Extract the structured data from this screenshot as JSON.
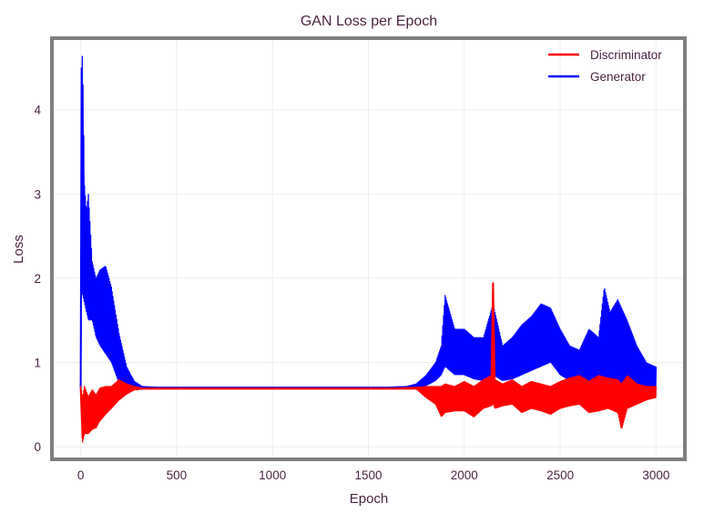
{
  "chart_data": {
    "type": "line",
    "title": "GAN Loss per Epoch",
    "xlabel": "Epoch",
    "ylabel": "Loss",
    "xlim": [
      -150,
      3150
    ],
    "ylim": [
      -0.15,
      4.85
    ],
    "xticks": [
      0,
      500,
      1000,
      1500,
      2000,
      2500,
      3000
    ],
    "yticks": [
      0,
      1,
      2,
      3,
      4
    ],
    "grid": true,
    "legend_position": "top-right",
    "series": [
      {
        "name": "Discriminator",
        "color": "#ff0000",
        "x": [
          0,
          10,
          20,
          40,
          60,
          80,
          100,
          130,
          160,
          200,
          240,
          280,
          320,
          400,
          600,
          800,
          1000,
          1200,
          1400,
          1600,
          1750,
          1800,
          1850,
          1880,
          1900,
          1950,
          2000,
          2050,
          2100,
          2140,
          2150,
          2160,
          2200,
          2250,
          2300,
          2350,
          2400,
          2450,
          2500,
          2550,
          2600,
          2650,
          2700,
          2750,
          2800,
          2820,
          2850,
          2900,
          2950,
          3000
        ],
        "y": [
          0.7,
          0.1,
          0.35,
          0.2,
          0.4,
          0.25,
          0.45,
          0.45,
          0.55,
          0.6,
          0.65,
          0.68,
          0.69,
          0.69,
          0.69,
          0.69,
          0.69,
          0.69,
          0.69,
          0.69,
          0.69,
          0.65,
          0.6,
          0.45,
          0.62,
          0.55,
          0.6,
          0.5,
          0.6,
          0.55,
          1.95,
          0.55,
          0.6,
          0.62,
          0.55,
          0.58,
          0.6,
          0.55,
          0.58,
          0.6,
          0.62,
          0.55,
          0.58,
          0.6,
          0.55,
          0.22,
          0.65,
          0.6,
          0.62,
          0.65
        ],
        "low": [
          0.7,
          0.05,
          0.15,
          0.15,
          0.2,
          0.22,
          0.3,
          0.38,
          0.45,
          0.55,
          0.62,
          0.67,
          0.68,
          0.68,
          0.68,
          0.68,
          0.68,
          0.68,
          0.68,
          0.68,
          0.68,
          0.58,
          0.5,
          0.35,
          0.4,
          0.42,
          0.42,
          0.35,
          0.45,
          0.48,
          0.5,
          0.45,
          0.48,
          0.5,
          0.4,
          0.45,
          0.42,
          0.38,
          0.45,
          0.48,
          0.5,
          0.4,
          0.42,
          0.45,
          0.4,
          0.2,
          0.45,
          0.5,
          0.55,
          0.58
        ],
        "high": [
          0.72,
          0.6,
          0.72,
          0.6,
          0.68,
          0.62,
          0.7,
          0.72,
          0.72,
          0.8,
          0.75,
          0.72,
          0.7,
          0.7,
          0.7,
          0.7,
          0.7,
          0.7,
          0.7,
          0.7,
          0.71,
          0.72,
          0.72,
          0.72,
          0.75,
          0.72,
          0.78,
          0.72,
          0.8,
          0.85,
          1.97,
          0.8,
          0.75,
          0.8,
          0.72,
          0.78,
          0.75,
          0.72,
          0.78,
          0.82,
          0.85,
          0.78,
          0.85,
          0.82,
          0.8,
          0.75,
          0.85,
          0.75,
          0.72,
          0.72
        ]
      },
      {
        "name": "Generator",
        "color": "#0000ff",
        "x": [
          0,
          5,
          10,
          20,
          30,
          40,
          60,
          80,
          100,
          130,
          160,
          200,
          240,
          280,
          320,
          400,
          600,
          800,
          1000,
          1200,
          1400,
          1600,
          1700,
          1750,
          1800,
          1850,
          1880,
          1900,
          1950,
          2000,
          2050,
          2100,
          2150,
          2200,
          2250,
          2300,
          2350,
          2400,
          2450,
          2500,
          2550,
          2600,
          2650,
          2700,
          2730,
          2760,
          2800,
          2850,
          2900,
          2950,
          3000
        ],
        "y": [
          0.7,
          4.5,
          3.8,
          2.5,
          2.4,
          2.2,
          1.9,
          1.8,
          1.7,
          1.6,
          1.5,
          1.0,
          0.8,
          0.72,
          0.7,
          0.7,
          0.7,
          0.7,
          0.7,
          0.7,
          0.7,
          0.7,
          0.71,
          0.72,
          0.75,
          0.85,
          1.0,
          1.15,
          1.1,
          1.1,
          1.0,
          0.95,
          1.2,
          0.95,
          1.0,
          1.15,
          1.2,
          1.3,
          1.35,
          1.1,
          0.95,
          0.9,
          0.95,
          1.0,
          1.1,
          1.05,
          1.1,
          1.0,
          0.9,
          0.8,
          0.75
        ],
        "low": [
          0.68,
          2.0,
          1.8,
          1.7,
          1.6,
          1.5,
          1.5,
          1.3,
          1.2,
          1.1,
          1.0,
          0.75,
          0.7,
          0.69,
          0.69,
          0.69,
          0.69,
          0.69,
          0.69,
          0.69,
          0.69,
          0.69,
          0.7,
          0.7,
          0.72,
          0.78,
          0.85,
          0.95,
          0.85,
          0.85,
          0.8,
          0.78,
          0.85,
          0.78,
          0.8,
          0.85,
          0.9,
          0.95,
          1.0,
          0.85,
          0.78,
          0.72,
          0.75,
          0.8,
          0.78,
          0.75,
          0.75,
          0.7,
          0.7,
          0.72,
          0.72
        ],
        "high": [
          0.72,
          4.7,
          4.6,
          3.1,
          2.8,
          3.0,
          2.2,
          2.0,
          2.1,
          2.15,
          1.9,
          1.35,
          0.95,
          0.78,
          0.72,
          0.71,
          0.71,
          0.71,
          0.71,
          0.71,
          0.71,
          0.71,
          0.72,
          0.75,
          0.85,
          1.0,
          1.2,
          1.8,
          1.4,
          1.4,
          1.3,
          1.3,
          1.7,
          1.2,
          1.3,
          1.45,
          1.55,
          1.7,
          1.65,
          1.4,
          1.2,
          1.15,
          1.4,
          1.3,
          1.9,
          1.6,
          1.75,
          1.5,
          1.2,
          1.0,
          0.95
        ]
      }
    ]
  }
}
